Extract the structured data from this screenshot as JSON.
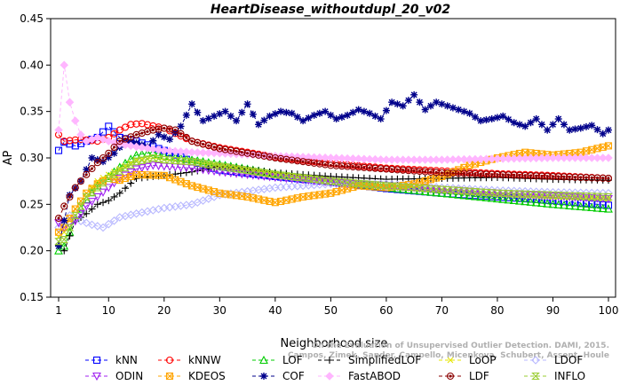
{
  "chart_data": {
    "type": "line",
    "title": "HeartDisease_withoutdupl_20_v02",
    "xlabel": "Neighborhood size",
    "ylabel": "AP",
    "xlim": [
      1,
      100
    ],
    "ylim": [
      0.15,
      0.45
    ],
    "xticks": [
      1,
      10,
      20,
      30,
      40,
      50,
      60,
      70,
      80,
      90,
      100
    ],
    "yticks": [
      0.15,
      0.2,
      0.25,
      0.3,
      0.35,
      0.4,
      0.45
    ],
    "grid": false,
    "legend_position": "bottom",
    "watermark": [
      "On the Evaluation of Unsupervised Outlier Detection. DAMI, 2015.",
      "Campos, Zimek, Sander, Campello, Micenkova, Schubert, Assent, Houle"
    ],
    "series": [
      {
        "name": "kNN",
        "color": "#0000ff",
        "marker": "square",
        "x": [
          1,
          2,
          4,
          6,
          8,
          10,
          12,
          15,
          18,
          20,
          25,
          30,
          40,
          50,
          60,
          70,
          80,
          90,
          100
        ],
        "y": [
          0.308,
          0.317,
          0.313,
          0.318,
          0.322,
          0.334,
          0.322,
          0.318,
          0.312,
          0.308,
          0.296,
          0.287,
          0.28,
          0.274,
          0.267,
          0.262,
          0.258,
          0.254,
          0.249
        ]
      },
      {
        "name": "kNNW",
        "color": "#ff0000",
        "marker": "circle",
        "x": [
          1,
          2,
          5,
          8,
          10,
          12,
          14,
          16,
          20,
          25,
          30,
          40,
          50,
          60,
          70,
          80,
          90,
          100
        ],
        "y": [
          0.325,
          0.318,
          0.32,
          0.318,
          0.322,
          0.33,
          0.336,
          0.337,
          0.332,
          0.318,
          0.311,
          0.301,
          0.294,
          0.289,
          0.286,
          0.283,
          0.281,
          0.278
        ]
      },
      {
        "name": "LOF",
        "color": "#00cc00",
        "marker": "triangle",
        "x": [
          1,
          2,
          4,
          6,
          8,
          10,
          12,
          15,
          18,
          20,
          25,
          30,
          40,
          50,
          60,
          70,
          80,
          90,
          100
        ],
        "y": [
          0.2,
          0.205,
          0.235,
          0.255,
          0.27,
          0.28,
          0.29,
          0.303,
          0.306,
          0.302,
          0.298,
          0.293,
          0.283,
          0.275,
          0.268,
          0.262,
          0.256,
          0.25,
          0.245
        ]
      },
      {
        "name": "SimplifiedLOF",
        "color": "#000000",
        "marker": "plus",
        "x": [
          1,
          2,
          4,
          6,
          8,
          10,
          12,
          15,
          18,
          20,
          25,
          30,
          40,
          50,
          60,
          70,
          80,
          90,
          100
        ],
        "y": [
          0.206,
          0.2,
          0.232,
          0.24,
          0.25,
          0.254,
          0.262,
          0.278,
          0.28,
          0.281,
          0.285,
          0.291,
          0.284,
          0.28,
          0.277,
          0.278,
          0.279,
          0.277,
          0.276
        ]
      },
      {
        "name": "LoOP",
        "color": "#e6e600",
        "marker": "x",
        "x": [
          1,
          2,
          4,
          6,
          8,
          10,
          12,
          15,
          18,
          20,
          25,
          30,
          40,
          50,
          60,
          70,
          80,
          90,
          100
        ],
        "y": [
          0.215,
          0.22,
          0.245,
          0.262,
          0.275,
          0.282,
          0.288,
          0.298,
          0.3,
          0.298,
          0.296,
          0.292,
          0.283,
          0.276,
          0.27,
          0.265,
          0.261,
          0.258,
          0.256
        ]
      },
      {
        "name": "LDOF",
        "color": "#b8b8ff",
        "marker": "diamond",
        "x": [
          1,
          3,
          5,
          7,
          9,
          12,
          15,
          20,
          25,
          30,
          40,
          50,
          60,
          70,
          80,
          90,
          100
        ],
        "y": [
          0.225,
          0.238,
          0.232,
          0.228,
          0.225,
          0.236,
          0.24,
          0.246,
          0.25,
          0.26,
          0.268,
          0.272,
          0.272,
          0.268,
          0.265,
          0.263,
          0.262
        ]
      },
      {
        "name": "ODIN",
        "color": "#a020f0",
        "marker": "triangle-down",
        "x": [
          1,
          2,
          4,
          6,
          8,
          10,
          12,
          15,
          18,
          20,
          25,
          30,
          40,
          50,
          60,
          70,
          80,
          90,
          100
        ],
        "y": [
          0.23,
          0.225,
          0.232,
          0.248,
          0.258,
          0.268,
          0.278,
          0.288,
          0.292,
          0.291,
          0.289,
          0.285,
          0.279,
          0.274,
          0.27,
          0.266,
          0.262,
          0.259,
          0.256
        ]
      },
      {
        "name": "KDEOS",
        "color": "#ffa500",
        "marker": "square-x",
        "x": [
          1,
          2,
          4,
          6,
          8,
          10,
          12,
          15,
          20,
          25,
          30,
          35,
          40,
          45,
          50,
          55,
          60,
          65,
          70,
          75,
          80,
          85,
          90,
          95,
          100
        ],
        "y": [
          0.22,
          0.225,
          0.245,
          0.262,
          0.272,
          0.278,
          0.276,
          0.282,
          0.281,
          0.27,
          0.262,
          0.258,
          0.252,
          0.258,
          0.262,
          0.27,
          0.268,
          0.272,
          0.28,
          0.292,
          0.3,
          0.306,
          0.303,
          0.306,
          0.313
        ]
      },
      {
        "name": "COF",
        "color": "#00008b",
        "marker": "asterisk",
        "x": [
          1,
          3,
          5,
          7,
          9,
          11,
          13,
          15,
          17,
          19,
          21,
          23,
          25,
          27,
          29,
          31,
          33,
          35,
          37,
          39,
          41,
          43,
          45,
          47,
          49,
          51,
          53,
          55,
          57,
          59,
          61,
          63,
          65,
          67,
          69,
          71,
          73,
          75,
          77,
          79,
          81,
          83,
          85,
          87,
          89,
          91,
          93,
          95,
          97,
          99,
          100
        ],
        "y": [
          0.205,
          0.26,
          0.275,
          0.3,
          0.296,
          0.305,
          0.318,
          0.316,
          0.312,
          0.325,
          0.32,
          0.334,
          0.358,
          0.34,
          0.345,
          0.35,
          0.34,
          0.358,
          0.336,
          0.345,
          0.35,
          0.348,
          0.34,
          0.346,
          0.35,
          0.342,
          0.346,
          0.352,
          0.348,
          0.342,
          0.36,
          0.356,
          0.368,
          0.352,
          0.36,
          0.356,
          0.352,
          0.348,
          0.34,
          0.342,
          0.345,
          0.338,
          0.334,
          0.342,
          0.33,
          0.342,
          0.33,
          0.332,
          0.335,
          0.326,
          0.33
        ]
      },
      {
        "name": "FastABOD",
        "color": "#ffb6ff",
        "marker": "diamond-filled",
        "x": [
          1,
          2,
          3,
          4,
          5,
          6,
          8,
          10,
          12,
          15,
          20,
          25,
          30,
          40,
          50,
          60,
          70,
          80,
          90,
          100
        ],
        "y": [
          0.33,
          0.4,
          0.36,
          0.34,
          0.325,
          0.318,
          0.322,
          0.318,
          0.315,
          0.312,
          0.308,
          0.306,
          0.305,
          0.302,
          0.3,
          0.298,
          0.298,
          0.299,
          0.3,
          0.3
        ]
      },
      {
        "name": "LDF",
        "color": "#8b0000",
        "marker": "circle-dot",
        "x": [
          1,
          2,
          4,
          6,
          8,
          10,
          12,
          15,
          18,
          20,
          22,
          25,
          30,
          40,
          50,
          60,
          70,
          80,
          90,
          100
        ],
        "y": [
          0.235,
          0.248,
          0.268,
          0.282,
          0.295,
          0.305,
          0.318,
          0.325,
          0.33,
          0.332,
          0.33,
          0.318,
          0.31,
          0.3,
          0.292,
          0.288,
          0.284,
          0.282,
          0.28,
          0.278
        ]
      },
      {
        "name": "INFLO",
        "color": "#9acd32",
        "marker": "hourglass",
        "x": [
          1,
          2,
          4,
          6,
          8,
          10,
          12,
          15,
          18,
          20,
          25,
          30,
          40,
          50,
          60,
          70,
          80,
          90,
          100
        ],
        "y": [
          0.21,
          0.212,
          0.238,
          0.258,
          0.268,
          0.278,
          0.286,
          0.296,
          0.3,
          0.298,
          0.296,
          0.291,
          0.282,
          0.275,
          0.27,
          0.266,
          0.262,
          0.26,
          0.258
        ]
      }
    ]
  }
}
